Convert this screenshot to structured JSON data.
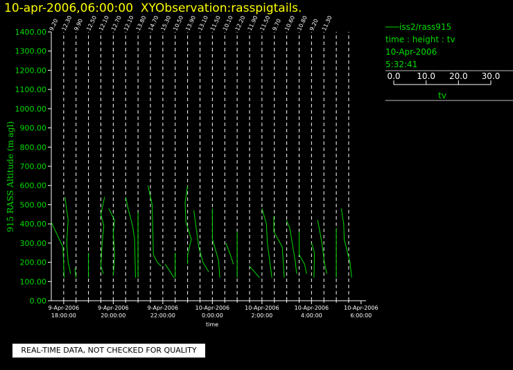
{
  "title": {
    "datetime": "10-apr-2006,06:00:00",
    "observation": "XYObservation:rasspigtails."
  },
  "legend": {
    "station": "iss2/rass915",
    "variables": "time : height : tv",
    "date": "10-Apr-2006",
    "time": "5:32:41",
    "scale_ticks": [
      "0.0",
      "10.0",
      "20.0",
      "30.0"
    ],
    "scale_label": "tv"
  },
  "disclaimer": "REAL-TIME DATA, NOT CHECKED FOR QUALITY",
  "colors": {
    "background": "#000000",
    "title": "#ffff00",
    "data": "#00dd00",
    "axis": "#ffffff"
  },
  "chart_data": {
    "type": "line",
    "title": "",
    "xlabel": "time",
    "ylabel": "915 RASS Altitude (m agl)",
    "ylim": [
      0,
      1400
    ],
    "yticks": [
      "0.00",
      "100.00",
      "200.00",
      "300.00",
      "400.00",
      "500.00",
      "600.00",
      "700.00",
      "800.00",
      "900.00",
      "1000.00",
      "1100.00",
      "1200.00",
      "1300.00",
      "1400.00"
    ],
    "xlim_hours": [
      17.5,
      30.2
    ],
    "xticks": [
      {
        "hour": 18,
        "date": "9-Apr-2006",
        "time": "18:00:00"
      },
      {
        "hour": 20,
        "date": "9-Apr-2006",
        "time": "20:00:00"
      },
      {
        "hour": 22,
        "date": "9-Apr-2006",
        "time": "22:00:00"
      },
      {
        "hour": 24,
        "date": "10-Apr-2006",
        "time": "0:00:00"
      },
      {
        "hour": 26,
        "date": "10-Apr-2006",
        "time": "2:00:00"
      },
      {
        "hour": 28,
        "date": "10-Apr-2006",
        "time": "4:00:00"
      },
      {
        "hour": 30,
        "date": "10-Apr-2006",
        "time": "6:00:00"
      }
    ],
    "profiles": [
      {
        "hour": 17.5,
        "label": "9.20",
        "points": [
          [
            17.5,
            410
          ],
          [
            17.75,
            340
          ],
          [
            17.97,
            280
          ],
          [
            18.02,
            120
          ]
        ]
      },
      {
        "hour": 18.0,
        "label": "12.30",
        "points": [
          [
            18.05,
            540
          ],
          [
            18.18,
            420
          ],
          [
            18.12,
            300
          ],
          [
            18.18,
            200
          ],
          [
            18.28,
            140
          ]
        ]
      },
      {
        "hour": 18.5,
        "label": "9.90",
        "points": [
          [
            18.45,
            170
          ],
          [
            18.5,
            120
          ]
        ]
      },
      {
        "hour": 19.0,
        "label": "12.50",
        "points": [
          [
            19.0,
            250
          ],
          [
            19.0,
            120
          ]
        ]
      },
      {
        "hour": 19.5,
        "label": "12.10",
        "points": [
          [
            19.65,
            540
          ],
          [
            19.5,
            450
          ],
          [
            19.62,
            390
          ],
          [
            19.55,
            300
          ],
          [
            19.5,
            180
          ],
          [
            19.6,
            140
          ]
        ]
      },
      {
        "hour": 20.0,
        "label": "12.70",
        "points": [
          [
            19.82,
            480
          ],
          [
            20.05,
            420
          ],
          [
            20.0,
            350
          ],
          [
            20.06,
            240
          ],
          [
            20.0,
            130
          ]
        ]
      },
      {
        "hour": 20.5,
        "label": "12.10",
        "points": [
          [
            20.5,
            540
          ],
          [
            20.6,
            480
          ],
          [
            20.78,
            390
          ],
          [
            20.86,
            320
          ],
          [
            20.9,
            120
          ]
        ]
      },
      {
        "hour": 21.0,
        "label": "13.80",
        "points": [
          [
            21.0,
            460
          ],
          [
            21.0,
            120
          ]
        ]
      },
      {
        "hour": 21.5,
        "label": "14.70",
        "points": [
          [
            21.4,
            600
          ],
          [
            21.57,
            500
          ],
          [
            21.62,
            240
          ],
          [
            21.78,
            200
          ],
          [
            21.93,
            180
          ]
        ]
      },
      {
        "hour": 22.0,
        "label": "15.30",
        "points": [
          [
            22.1,
            190
          ],
          [
            22.45,
            120
          ]
        ]
      },
      {
        "hour": 22.5,
        "label": "10.50",
        "points": [
          [
            22.5,
            250
          ],
          [
            22.5,
            120
          ]
        ]
      },
      {
        "hour": 23.0,
        "label": "13.90",
        "points": [
          [
            23.0,
            600
          ],
          [
            22.9,
            510
          ],
          [
            22.93,
            410
          ],
          [
            23.15,
            320
          ],
          [
            23.0,
            240
          ],
          [
            23.0,
            190
          ]
        ]
      },
      {
        "hour": 23.5,
        "label": "13.10",
        "points": [
          [
            23.25,
            470
          ],
          [
            23.45,
            280
          ],
          [
            23.62,
            200
          ],
          [
            23.85,
            150
          ]
        ]
      },
      {
        "hour": 24.0,
        "label": "11.50",
        "points": [
          [
            24.0,
            480
          ],
          [
            24.0,
            320
          ],
          [
            24.25,
            210
          ],
          [
            24.3,
            120
          ]
        ]
      },
      {
        "hour": 24.5,
        "label": "10.10",
        "points": [
          [
            24.55,
            300
          ],
          [
            24.75,
            230
          ],
          [
            24.85,
            190
          ]
        ]
      },
      {
        "hour": 25.0,
        "label": "12.20",
        "points": [
          [
            25.0,
            360
          ],
          [
            25.0,
            120
          ]
        ]
      },
      {
        "hour": 25.5,
        "label": "11.90",
        "points": [
          [
            25.5,
            180
          ],
          [
            25.9,
            120
          ]
        ]
      },
      {
        "hour": 26.0,
        "label": "11.50",
        "points": [
          [
            26.0,
            480
          ],
          [
            26.18,
            400
          ],
          [
            26.22,
            300
          ],
          [
            26.4,
            120
          ]
        ]
      },
      {
        "hour": 26.5,
        "label": "9.70",
        "points": [
          [
            26.48,
            440
          ],
          [
            26.48,
            360
          ],
          [
            26.82,
            280
          ],
          [
            26.9,
            120
          ]
        ]
      },
      {
        "hour": 27.0,
        "label": "10.60",
        "points": [
          [
            26.98,
            420
          ],
          [
            27.12,
            380
          ],
          [
            27.35,
            200
          ],
          [
            27.4,
            140
          ]
        ]
      },
      {
        "hour": 27.5,
        "label": "10.80",
        "points": [
          [
            27.5,
            360
          ],
          [
            27.5,
            240
          ],
          [
            27.72,
            190
          ],
          [
            27.8,
            140
          ]
        ]
      },
      {
        "hour": 28.0,
        "label": "9.20",
        "points": [
          [
            28.0,
            300
          ],
          [
            28.12,
            250
          ],
          [
            28.1,
            120
          ]
        ]
      },
      {
        "hour": 28.5,
        "label": "11.30",
        "points": [
          [
            28.25,
            420
          ],
          [
            28.42,
            300
          ],
          [
            28.52,
            200
          ],
          [
            28.62,
            140
          ]
        ]
      },
      {
        "hour": 29.0,
        "label": "",
        "points": [
          [
            29.0,
            380
          ],
          [
            29.0,
            120
          ]
        ]
      },
      {
        "hour": 29.5,
        "label": "",
        "points": [
          [
            29.2,
            480
          ],
          [
            29.3,
            400
          ],
          [
            29.32,
            320
          ],
          [
            29.55,
            200
          ],
          [
            29.62,
            120
          ]
        ]
      }
    ]
  }
}
